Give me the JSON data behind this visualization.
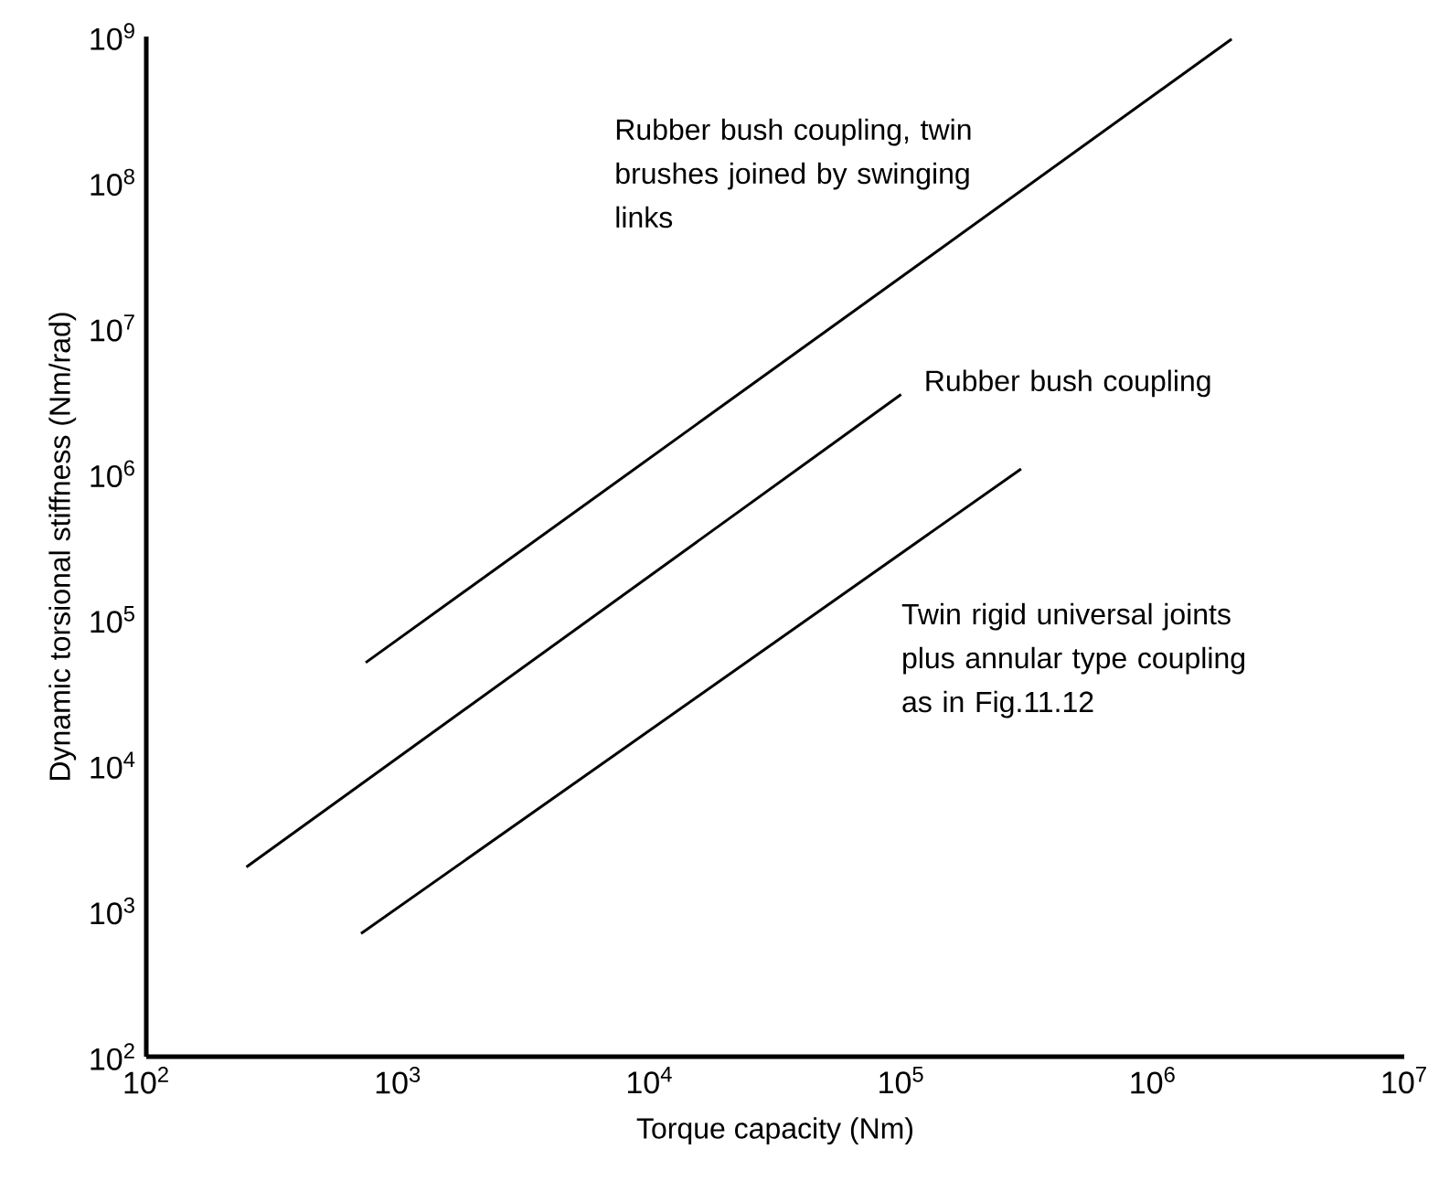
{
  "chart_data": {
    "type": "line",
    "xlabel": "Torque capacity (Nm)",
    "ylabel": "Dynamic torsional stiffness  (Nm/rad)",
    "log": "xy",
    "xlim": [
      100,
      10000000
    ],
    "ylim": [
      100,
      1000000000
    ],
    "xticks": [
      {
        "value": 100,
        "label": "10$^{2}$"
      },
      {
        "value": 1000,
        "label": "10$^{3}$"
      },
      {
        "value": 10000,
        "label": "10$^{4}$"
      },
      {
        "value": 100000,
        "label": "10$^{5}$"
      },
      {
        "value": 1000000,
        "label": "10$^{6}$"
      },
      {
        "value": 10000000,
        "label": "10$^{7}$"
      }
    ],
    "yticks": [
      {
        "value": 100,
        "label": "10$^{2}$"
      },
      {
        "value": 1000,
        "label": "10$^{3}$"
      },
      {
        "value": 10000,
        "label": "10$^{4}$"
      },
      {
        "value": 100000,
        "label": "10$^{5}$"
      },
      {
        "value": 1000000,
        "label": "10$^{6}$"
      },
      {
        "value": 10000000,
        "label": "10$^{7}$"
      },
      {
        "value": 100000000,
        "label": "10$^{8}$"
      },
      {
        "value": 1000000000,
        "label": "10$^{9}$"
      }
    ],
    "grid": false,
    "legend": false,
    "marker": "none",
    "line_style": "solid",
    "series": [
      {
        "name": "Rubber bush coupling, twin brushes joined by swinging links",
        "color": "#000000",
        "x": [
          745,
          2060000
        ],
        "values": [
          50600,
          960000000
        ]
      },
      {
        "name": "Rubber bush coupling",
        "color": "#000000",
        "x": [
          250,
          100000
        ],
        "values": [
          2000,
          3500000
        ]
      },
      {
        "name": "Twin rigid universal joints plus annular type coupling as in Fig.11.12",
        "color": "#000000",
        "x": [
          714,
          300000
        ],
        "values": [
          700,
          1080000
        ]
      }
    ]
  }
}
